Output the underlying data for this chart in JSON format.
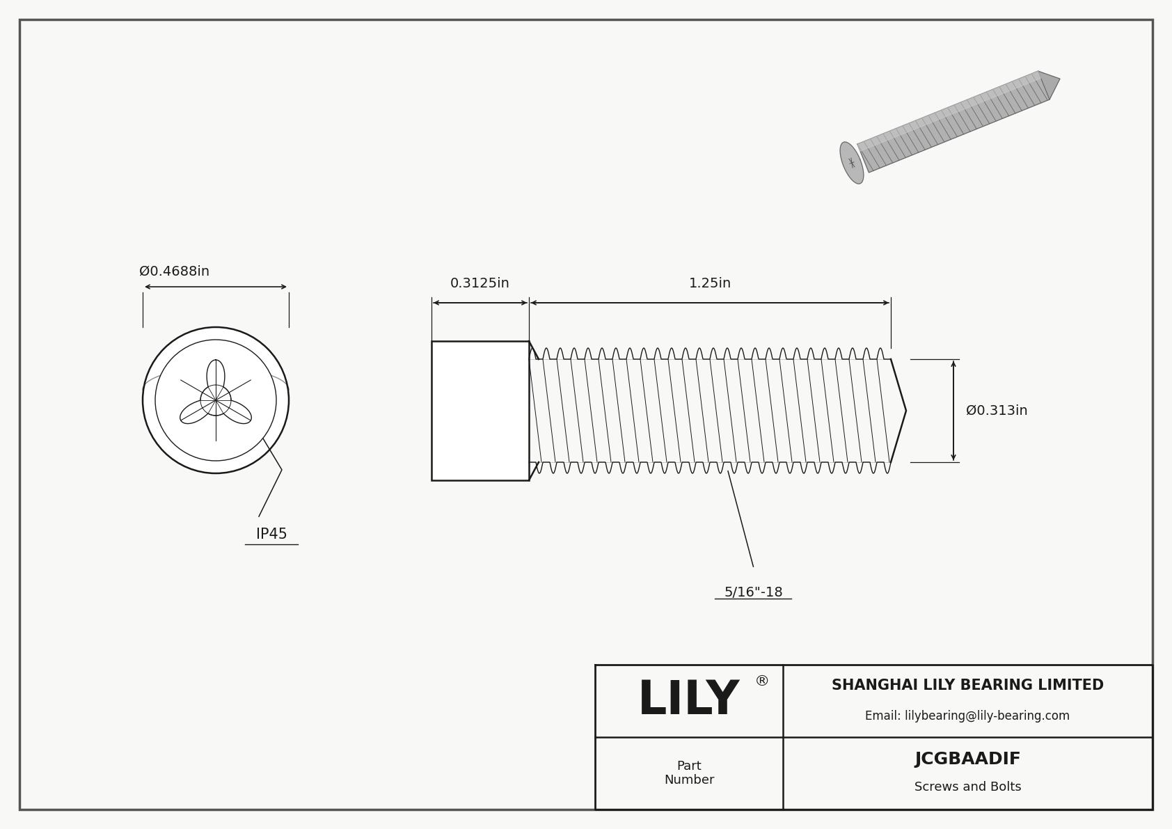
{
  "bg_color": "#ffffff",
  "line_color": "#1a1a1a",
  "dim_diameter_head": "Ø0.4688in",
  "dim_head_length": "0.3125in",
  "dim_body_length": "1.25in",
  "dim_shank_diameter": "Ø0.313in",
  "label_ip45": "IP45",
  "label_thread": "5/16\"-18",
  "company": "SHANGHAI LILY BEARING LIMITED",
  "email": "Email: lilybearing@lily-bearing.com",
  "part_label": "Part\nNumber",
  "part_number": "JCGBAADIF",
  "part_type": "Screws and Bolts",
  "brand": "LILY",
  "border_color": "#555555",
  "bg_outer": "#f8f8f6"
}
